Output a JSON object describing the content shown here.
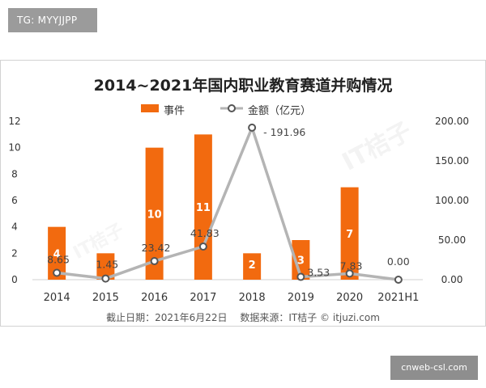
{
  "header_tag": "TG: MYYJJPP",
  "footer_tag": "cnweb-csl.com",
  "source": {
    "date": "截止日期：2021年6月22日",
    "origin": "数据来源：IT桔子 © itjuzi.com"
  },
  "colors": {
    "bar": "#f26a0f",
    "line": "#b4b4b4",
    "marker_fill": "#ffffff",
    "marker_stroke": "#555555"
  },
  "chart_data": {
    "type": "bar",
    "title": "2014~2021年国内职业教育赛道并购情况",
    "categories": [
      "2014",
      "2015",
      "2016",
      "2017",
      "2018",
      "2019",
      "2020",
      "2021H1"
    ],
    "series": [
      {
        "name": "事件",
        "type": "bar",
        "axis": "left",
        "values": [
          4,
          2,
          10,
          11,
          2,
          3,
          7,
          0
        ],
        "labels": [
          "4",
          "",
          "10",
          "11",
          "2",
          "3",
          "7",
          ""
        ]
      },
      {
        "name": "金额（亿元）",
        "type": "line",
        "axis": "right",
        "values": [
          8.65,
          1.45,
          23.42,
          41.83,
          191.96,
          3.53,
          7.83,
          0.0
        ],
        "labels": [
          "8.65",
          "1.45",
          "23.42",
          "41.83",
          "191.96",
          "3.53",
          "7.83",
          "0.00"
        ]
      }
    ],
    "y_left": {
      "min": 0,
      "max": 12,
      "ticks": [
        "0",
        "2",
        "4",
        "6",
        "8",
        "10",
        "12"
      ]
    },
    "y_right": {
      "min": 0,
      "max": 200,
      "ticks": [
        "0.00",
        "50.00",
        "100.00",
        "150.00",
        "200.00"
      ]
    },
    "legend_position": "top-center",
    "grid": false,
    "watermark": "IT桔子"
  }
}
